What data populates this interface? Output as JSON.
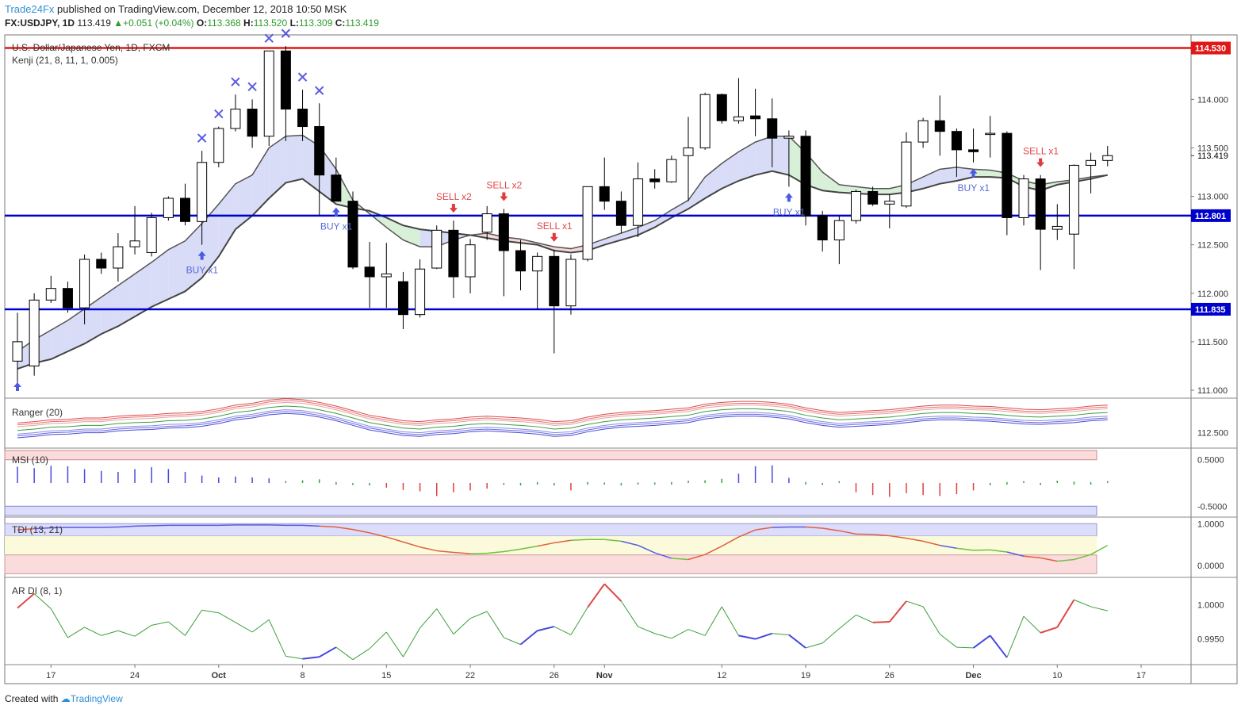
{
  "header": {
    "brand": "Trade24Fx",
    "published": " published on TradingView.com, December 12, 2018 10:50 MSK",
    "symbol": "FX:USDJPY, 1D",
    "last": "113.419",
    "change": "+0.051 (+0.04%)",
    "o_label": "O:",
    "o": "113.368",
    "h_label": "H:",
    "h": "113.520",
    "l_label": "L:",
    "l": "113.309",
    "c_label": "C:",
    "c": "113.419"
  },
  "footer": {
    "created": "Created with",
    "logo": "TradingView"
  },
  "colors": {
    "bull": "#ffffff",
    "bear": "#000000",
    "hline_red": "#e01818",
    "hline_blue": "#0000cc",
    "cloud_up": "#d8dcf7",
    "cloud_down": "#d8f0d8",
    "cloud_red": "#f7d8d8"
  },
  "chart_data": [
    {
      "type": "candlestick",
      "title": "U.S. Dollar/Japanese Yen, 1D, FXCM",
      "indicator": "Kenji (21, 8, 11, 1, 0.005)",
      "ylim": [
        111.0,
        114.6
      ],
      "y_ticks": [
        "114.000",
        "113.500",
        "113.000",
        "112.500",
        "112.000",
        "111.500",
        "111.000"
      ],
      "x_ticks": [
        "17",
        "24",
        "Oct",
        "8",
        "15",
        "22",
        "26",
        "Nov",
        "12",
        "19",
        "26",
        "Dec",
        "10",
        "17"
      ],
      "last_price_label": "113.419",
      "horizontal_levels": [
        {
          "label": "114.530",
          "value": 114.53,
          "color": "red"
        },
        {
          "label": "112.801",
          "value": 112.801,
          "color": "blue"
        },
        {
          "label": "111.835",
          "value": 111.835,
          "color": "blue"
        }
      ],
      "candles": [
        {
          "o": 111.3,
          "h": 111.8,
          "l": 111.0,
          "c": 111.5
        },
        {
          "o": 111.25,
          "h": 112.0,
          "l": 111.15,
          "c": 111.93
        },
        {
          "o": 111.93,
          "h": 112.18,
          "l": 111.9,
          "c": 112.05
        },
        {
          "o": 112.05,
          "h": 112.12,
          "l": 111.8,
          "c": 111.85
        },
        {
          "o": 111.85,
          "h": 112.4,
          "l": 111.68,
          "c": 112.35
        },
        {
          "o": 112.35,
          "h": 112.42,
          "l": 112.2,
          "c": 112.26
        },
        {
          "o": 112.26,
          "h": 112.62,
          "l": 112.12,
          "c": 112.48
        },
        {
          "o": 112.48,
          "h": 112.9,
          "l": 112.4,
          "c": 112.54
        },
        {
          "o": 112.42,
          "h": 112.83,
          "l": 112.38,
          "c": 112.78
        },
        {
          "o": 112.78,
          "h": 113.0,
          "l": 112.75,
          "c": 112.98
        },
        {
          "o": 112.98,
          "h": 113.13,
          "l": 112.7,
          "c": 112.74
        },
        {
          "o": 112.74,
          "h": 113.47,
          "l": 112.5,
          "c": 113.35
        },
        {
          "o": 113.35,
          "h": 113.72,
          "l": 113.3,
          "c": 113.7
        },
        {
          "o": 113.7,
          "h": 114.05,
          "l": 113.67,
          "c": 113.9
        },
        {
          "o": 113.9,
          "h": 114.0,
          "l": 113.5,
          "c": 113.62
        },
        {
          "o": 113.62,
          "h": 114.5,
          "l": 113.52,
          "c": 114.5
        },
        {
          "o": 114.5,
          "h": 114.55,
          "l": 113.57,
          "c": 113.9
        },
        {
          "o": 113.9,
          "h": 114.1,
          "l": 113.57,
          "c": 113.72
        },
        {
          "o": 113.72,
          "h": 113.96,
          "l": 112.8,
          "c": 113.22
        },
        {
          "o": 113.22,
          "h": 113.4,
          "l": 112.95,
          "c": 112.95
        },
        {
          "o": 112.95,
          "h": 113.05,
          "l": 112.25,
          "c": 112.27
        },
        {
          "o": 112.27,
          "h": 112.53,
          "l": 111.85,
          "c": 112.17
        },
        {
          "o": 112.17,
          "h": 112.52,
          "l": 111.85,
          "c": 112.2
        },
        {
          "o": 112.12,
          "h": 112.22,
          "l": 111.63,
          "c": 111.78
        },
        {
          "o": 111.78,
          "h": 112.35,
          "l": 111.75,
          "c": 112.25
        },
        {
          "o": 112.26,
          "h": 112.7,
          "l": 112.25,
          "c": 112.65
        },
        {
          "o": 112.65,
          "h": 112.75,
          "l": 111.95,
          "c": 112.17
        },
        {
          "o": 112.17,
          "h": 112.56,
          "l": 112.0,
          "c": 112.5
        },
        {
          "o": 112.63,
          "h": 112.9,
          "l": 112.55,
          "c": 112.82
        },
        {
          "o": 112.82,
          "h": 112.87,
          "l": 111.97,
          "c": 112.44
        },
        {
          "o": 112.44,
          "h": 112.55,
          "l": 112.03,
          "c": 112.23
        },
        {
          "o": 112.23,
          "h": 112.42,
          "l": 111.83,
          "c": 112.38
        },
        {
          "o": 112.38,
          "h": 112.45,
          "l": 111.38,
          "c": 111.87
        },
        {
          "o": 111.87,
          "h": 112.4,
          "l": 111.78,
          "c": 112.35
        },
        {
          "o": 112.35,
          "h": 113.1,
          "l": 112.33,
          "c": 113.1
        },
        {
          "o": 113.1,
          "h": 113.4,
          "l": 112.86,
          "c": 112.95
        },
        {
          "o": 112.95,
          "h": 113.05,
          "l": 112.62,
          "c": 112.7
        },
        {
          "o": 112.7,
          "h": 113.35,
          "l": 112.58,
          "c": 113.18
        },
        {
          "o": 113.18,
          "h": 113.28,
          "l": 113.08,
          "c": 113.15
        },
        {
          "o": 113.15,
          "h": 113.42,
          "l": 113.14,
          "c": 113.38
        },
        {
          "o": 113.42,
          "h": 113.82,
          "l": 112.95,
          "c": 113.5
        },
        {
          "o": 113.5,
          "h": 114.07,
          "l": 113.48,
          "c": 114.05
        },
        {
          "o": 114.05,
          "h": 114.06,
          "l": 113.75,
          "c": 113.78
        },
        {
          "o": 113.78,
          "h": 114.22,
          "l": 113.75,
          "c": 113.82
        },
        {
          "o": 113.83,
          "h": 114.11,
          "l": 113.62,
          "c": 113.8
        },
        {
          "o": 113.8,
          "h": 114.01,
          "l": 113.3,
          "c": 113.6
        },
        {
          "o": 113.6,
          "h": 113.68,
          "l": 113.1,
          "c": 113.62
        },
        {
          "o": 113.62,
          "h": 113.68,
          "l": 112.7,
          "c": 112.8
        },
        {
          "o": 112.8,
          "h": 112.85,
          "l": 112.43,
          "c": 112.55
        },
        {
          "o": 112.55,
          "h": 112.8,
          "l": 112.3,
          "c": 112.75
        },
        {
          "o": 112.75,
          "h": 113.07,
          "l": 112.72,
          "c": 113.05
        },
        {
          "o": 113.05,
          "h": 113.1,
          "l": 112.9,
          "c": 112.92
        },
        {
          "o": 112.92,
          "h": 113.02,
          "l": 112.67,
          "c": 112.95
        },
        {
          "o": 112.9,
          "h": 113.66,
          "l": 112.88,
          "c": 113.56
        },
        {
          "o": 113.56,
          "h": 113.81,
          "l": 113.5,
          "c": 113.78
        },
        {
          "o": 113.78,
          "h": 114.04,
          "l": 113.42,
          "c": 113.67
        },
        {
          "o": 113.67,
          "h": 113.7,
          "l": 113.2,
          "c": 113.48
        },
        {
          "o": 113.48,
          "h": 113.7,
          "l": 113.35,
          "c": 113.46
        },
        {
          "o": 113.65,
          "h": 113.83,
          "l": 113.4,
          "c": 113.65
        },
        {
          "o": 113.65,
          "h": 113.67,
          "l": 112.6,
          "c": 112.78
        },
        {
          "o": 112.78,
          "h": 113.22,
          "l": 112.7,
          "c": 113.18
        },
        {
          "o": 113.18,
          "h": 113.22,
          "l": 112.24,
          "c": 112.66
        },
        {
          "o": 112.66,
          "h": 112.92,
          "l": 112.55,
          "c": 112.69
        },
        {
          "o": 112.61,
          "h": 113.33,
          "l": 112.25,
          "c": 113.32
        },
        {
          "o": 113.32,
          "h": 113.45,
          "l": 113.03,
          "c": 113.37
        },
        {
          "o": 113.37,
          "h": 113.52,
          "l": 113.31,
          "c": 113.42
        }
      ],
      "kenji_upper": [
        111.4,
        111.52,
        111.62,
        111.72,
        111.84,
        111.96,
        112.08,
        112.2,
        112.32,
        112.45,
        112.54,
        112.72,
        112.92,
        113.13,
        113.22,
        113.5,
        113.62,
        113.63,
        113.52,
        113.28,
        112.96,
        112.82,
        112.68,
        112.55,
        112.48,
        112.48,
        112.55,
        112.6,
        112.62,
        112.58,
        112.56,
        112.52,
        112.48,
        112.46,
        112.5,
        112.56,
        112.62,
        112.68,
        112.75,
        112.86,
        112.96,
        113.2,
        113.34,
        113.46,
        113.56,
        113.62,
        113.62,
        113.45,
        113.25,
        113.12,
        113.1,
        113.08,
        113.08,
        113.12,
        113.2,
        113.28,
        113.3,
        113.28,
        113.27,
        113.24,
        113.16,
        113.12,
        113.15,
        113.17,
        113.2,
        113.22
      ],
      "kenji_lower": [
        111.22,
        111.28,
        111.32,
        111.4,
        111.48,
        111.58,
        111.66,
        111.76,
        111.86,
        111.94,
        112.02,
        112.16,
        112.38,
        112.66,
        112.8,
        112.98,
        113.14,
        113.18,
        113.05,
        112.92,
        112.88,
        112.85,
        112.78,
        112.7,
        112.66,
        112.64,
        112.62,
        112.6,
        112.57,
        112.54,
        112.52,
        112.5,
        112.44,
        112.42,
        112.44,
        112.5,
        112.55,
        112.6,
        112.68,
        112.78,
        112.87,
        112.98,
        113.08,
        113.16,
        113.22,
        113.26,
        113.22,
        113.12,
        113.06,
        113.04,
        113.03,
        113.02,
        113.02,
        113.04,
        113.08,
        113.13,
        113.16,
        113.2,
        113.2,
        113.19,
        113.1,
        113.06,
        113.12,
        113.15,
        113.18,
        113.22
      ],
      "signals": [
        {
          "label": "BUY x1",
          "index": 11,
          "side": "buy"
        },
        {
          "label": "BUY x1",
          "index": 19,
          "side": "buy"
        },
        {
          "label": "SELL x2",
          "index": 26,
          "side": "sell"
        },
        {
          "label": "SELL x2",
          "index": 29,
          "side": "sell"
        },
        {
          "label": "SELL x1",
          "index": 32,
          "side": "sell"
        },
        {
          "label": "BUY x1",
          "index": 46,
          "side": "buy"
        },
        {
          "label": "BUY x1",
          "index": 57,
          "side": "buy"
        },
        {
          "label": "SELL x1",
          "index": 61,
          "side": "sell"
        }
      ],
      "x_marks": [
        11,
        12,
        13,
        14,
        15,
        16,
        17,
        18
      ]
    },
    {
      "type": "line",
      "title": "Ranger (20)",
      "y_ticks": [
        "112.500"
      ],
      "ylim": [
        112.2,
        113.2
      ],
      "mid": [
        112.55,
        112.58,
        112.62,
        112.63,
        112.66,
        112.66,
        112.7,
        112.72,
        112.73,
        112.76,
        112.77,
        112.8,
        112.86,
        112.94,
        112.98,
        113.05,
        113.08,
        113.06,
        113.0,
        112.92,
        112.82,
        112.72,
        112.66,
        112.6,
        112.58,
        112.62,
        112.64,
        112.68,
        112.7,
        112.68,
        112.66,
        112.63,
        112.58,
        112.6,
        112.68,
        112.74,
        112.78,
        112.8,
        112.82,
        112.85,
        112.88,
        112.96,
        113.0,
        113.02,
        113.02,
        113.0,
        112.96,
        112.88,
        112.82,
        112.78,
        112.8,
        112.82,
        112.84,
        112.88,
        112.92,
        112.94,
        112.94,
        112.92,
        112.91,
        112.88,
        112.85,
        112.84,
        112.86,
        112.88,
        112.92,
        112.94
      ]
    },
    {
      "type": "bar",
      "title": "MSI (10)",
      "y_ticks": [
        "0.5000",
        "-0.5000"
      ],
      "ylim": [
        -0.7,
        0.7
      ],
      "values": [
        0.35,
        0.32,
        0.37,
        0.36,
        0.3,
        0.26,
        0.24,
        0.3,
        0.34,
        0.3,
        0.24,
        0.16,
        0.12,
        0.14,
        0.12,
        0.1,
        0.04,
        0.06,
        0.08,
        0.02,
        -0.01,
        -0.02,
        -0.1,
        -0.15,
        -0.18,
        -0.28,
        -0.2,
        -0.16,
        -0.12,
        -0.04,
        -0.02,
        0.02,
        -0.02,
        -0.16,
        0.02,
        0.01,
        -0.02,
        0.01,
        0.01,
        0.02,
        0.05,
        0.06,
        0.09,
        0.2,
        0.36,
        0.38,
        0.11,
        0.02,
        -0.01,
        0.04,
        -0.2,
        -0.26,
        -0.3,
        -0.22,
        -0.26,
        -0.28,
        -0.24,
        -0.16,
        -0.05,
        0.02,
        0.04,
        -0.01,
        0.05,
        0.03,
        0.02,
        0.04,
        0.2,
        0.22,
        0.18,
        0.02,
        0.04
      ]
    },
    {
      "type": "line",
      "title": "TDI (13, 21)",
      "y_ticks": [
        "1.0000",
        "0.0000"
      ],
      "ylim": [
        -0.25,
        1.1
      ],
      "values": [
        0.85,
        0.88,
        0.9,
        0.91,
        0.91,
        0.91,
        0.92,
        0.94,
        0.95,
        0.96,
        0.96,
        0.96,
        0.96,
        0.97,
        0.97,
        0.97,
        0.96,
        0.96,
        0.94,
        0.92,
        0.86,
        0.78,
        0.68,
        0.56,
        0.44,
        0.35,
        0.31,
        0.28,
        0.29,
        0.33,
        0.39,
        0.46,
        0.54,
        0.6,
        0.62,
        0.62,
        0.58,
        0.48,
        0.3,
        0.17,
        0.14,
        0.26,
        0.46,
        0.68,
        0.85,
        0.91,
        0.92,
        0.92,
        0.89,
        0.83,
        0.75,
        0.74,
        0.71,
        0.65,
        0.58,
        0.48,
        0.41,
        0.36,
        0.37,
        0.32,
        0.22,
        0.18,
        0.1,
        0.14,
        0.26,
        0.48,
        0.57,
        0.6,
        0.58,
        0.5
      ]
    },
    {
      "type": "line",
      "title": "AR DI (8, 1)",
      "y_ticks": [
        "1.0000",
        "0.9950"
      ],
      "ylim": [
        0.9915,
        1.0035
      ],
      "values": [
        0.9995,
        1.0016,
        0.9994,
        0.9952,
        0.9967,
        0.9955,
        0.9962,
        0.9954,
        0.997,
        0.9975,
        0.9955,
        0.9992,
        0.9988,
        0.9974,
        0.996,
        0.9978,
        0.9925,
        0.9921,
        0.9924,
        0.9938,
        0.992,
        0.9936,
        0.996,
        0.9924,
        0.9966,
        0.9994,
        0.9957,
        0.998,
        0.999,
        0.9952,
        0.9942,
        0.9962,
        0.9968,
        0.9956,
        0.9996,
        1.003,
        1.0005,
        0.9968,
        0.9958,
        0.9951,
        0.9964,
        0.9955,
        0.9997,
        0.9955,
        0.995,
        0.9958,
        0.9956,
        0.9937,
        0.9944,
        0.9965,
        0.9985,
        0.9974,
        0.9975,
        1.0005,
        0.9997,
        0.9957,
        0.9938,
        0.9937,
        0.9955,
        0.9923,
        0.9983,
        0.9959,
        0.9967,
        1.0007,
        0.9997,
        0.9991
      ]
    }
  ],
  "axis_label_x_positions_note": ""
}
